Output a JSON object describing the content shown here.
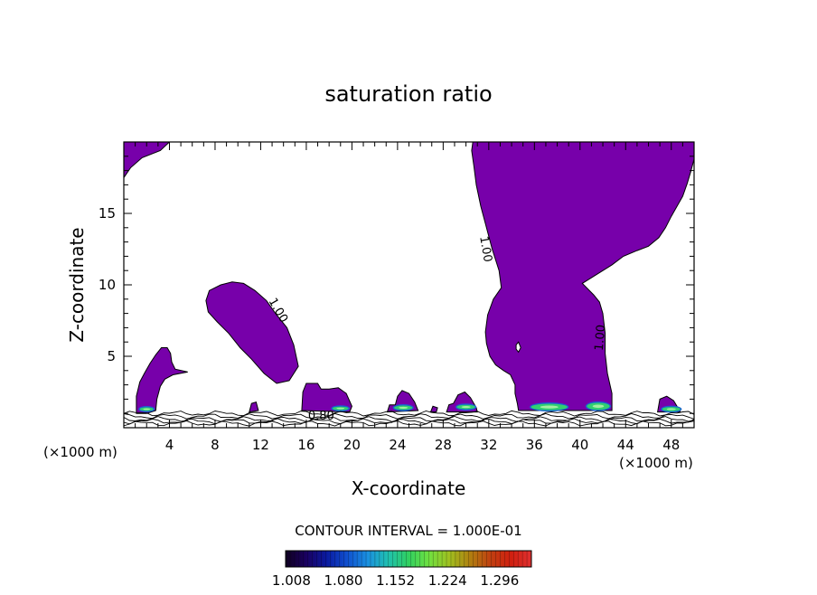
{
  "chart_data": {
    "type": "contour",
    "title": "saturation ratio",
    "xlabel": "X-coordinate",
    "ylabel": "Z-coordinate",
    "x_unit_label": "(×1000 m)",
    "xlim": [
      0,
      50
    ],
    "ylim": [
      0,
      20
    ],
    "x_ticks": [
      4,
      8,
      12,
      16,
      20,
      24,
      28,
      32,
      36,
      40,
      44,
      48
    ],
    "y_ticks": [
      5,
      10,
      15
    ],
    "fill_color": "#7700AA",
    "contour_labels": [
      {
        "text": "1.00",
        "x": 13.5,
        "z": 8.2,
        "angle": 60
      },
      {
        "text": "1.00",
        "x": 31.7,
        "z": 12.5,
        "angle": 80
      },
      {
        "text": "1.00",
        "x": 41.8,
        "z": 6.3,
        "angle": -85
      },
      {
        "text": "0.80",
        "x": 17.3,
        "z": 0.8,
        "angle": 0
      }
    ],
    "regions": [
      {
        "name": "top-left",
        "points": [
          [
            0,
            20
          ],
          [
            4,
            20
          ],
          [
            3.2,
            19.4
          ],
          [
            1.6,
            18.9
          ],
          [
            0.6,
            18.2
          ],
          [
            0,
            17.5
          ]
        ]
      },
      {
        "name": "small-left",
        "points": [
          [
            1.1,
            1.0
          ],
          [
            1.1,
            2.2
          ],
          [
            1.4,
            3.2
          ],
          [
            1.8,
            3.8
          ],
          [
            2.3,
            4.5
          ],
          [
            2.8,
            5.1
          ],
          [
            3.3,
            5.6
          ],
          [
            3.8,
            5.6
          ],
          [
            4.1,
            5.2
          ],
          [
            4.2,
            4.6
          ],
          [
            4.5,
            4.1
          ],
          [
            5.6,
            3.9
          ],
          [
            4.3,
            3.7
          ],
          [
            3.6,
            3.4
          ],
          [
            3.2,
            2.9
          ],
          [
            2.9,
            2.0
          ],
          [
            2.8,
            1.2
          ],
          [
            2.0,
            1.0
          ]
        ]
      },
      {
        "name": "mid-blob",
        "points": [
          [
            8.5,
            10.0
          ],
          [
            9.5,
            10.2
          ],
          [
            10.5,
            10.1
          ],
          [
            11.5,
            9.6
          ],
          [
            12.5,
            8.9
          ],
          [
            13.3,
            8.0
          ],
          [
            14.3,
            7.0
          ],
          [
            14.9,
            5.8
          ],
          [
            15.3,
            4.3
          ],
          [
            14.5,
            3.3
          ],
          [
            13.4,
            3.1
          ],
          [
            12.3,
            3.8
          ],
          [
            11.2,
            4.8
          ],
          [
            10.2,
            5.6
          ],
          [
            9.2,
            6.6
          ],
          [
            8.2,
            7.4
          ],
          [
            7.4,
            8.1
          ],
          [
            7.2,
            8.9
          ],
          [
            7.5,
            9.6
          ]
        ]
      },
      {
        "name": "bump-16",
        "points": [
          [
            15.6,
            1.2
          ],
          [
            15.7,
            2.5
          ],
          [
            16.0,
            3.1
          ],
          [
            17.0,
            3.1
          ],
          [
            17.3,
            2.7
          ],
          [
            18.0,
            2.7
          ],
          [
            18.8,
            2.8
          ],
          [
            19.5,
            2.4
          ],
          [
            20.0,
            1.5
          ],
          [
            19.8,
            1.1
          ]
        ]
      },
      {
        "name": "bump-24",
        "points": [
          [
            23.1,
            1.1
          ],
          [
            23.3,
            1.6
          ],
          [
            23.8,
            1.6
          ],
          [
            24.0,
            2.2
          ],
          [
            24.4,
            2.6
          ],
          [
            25.0,
            2.4
          ],
          [
            25.5,
            1.8
          ],
          [
            25.8,
            1.2
          ]
        ]
      },
      {
        "name": "bump-30",
        "points": [
          [
            28.3,
            1.1
          ],
          [
            28.5,
            1.6
          ],
          [
            28.9,
            1.7
          ],
          [
            29.3,
            2.3
          ],
          [
            29.9,
            2.5
          ],
          [
            30.4,
            2.1
          ],
          [
            30.9,
            1.4
          ],
          [
            31.0,
            1.1
          ]
        ]
      },
      {
        "name": "bump-12",
        "points": [
          [
            11.0,
            1.1
          ],
          [
            11.2,
            1.7
          ],
          [
            11.6,
            1.8
          ],
          [
            11.8,
            1.2
          ]
        ]
      },
      {
        "name": "bump-27",
        "points": [
          [
            26.9,
            1.1
          ],
          [
            27.1,
            1.5
          ],
          [
            27.5,
            1.4
          ],
          [
            27.4,
            1.1
          ]
        ]
      },
      {
        "name": "bump-48",
        "points": [
          [
            46.8,
            1.1
          ],
          [
            47.0,
            2.0
          ],
          [
            47.6,
            2.2
          ],
          [
            48.2,
            1.9
          ],
          [
            48.8,
            1.1
          ]
        ]
      },
      {
        "name": "tall-cloud",
        "points": [
          [
            30.6,
            20
          ],
          [
            30.5,
            19.4
          ],
          [
            30.7,
            18.3
          ],
          [
            30.9,
            17.0
          ],
          [
            31.3,
            15.5
          ],
          [
            31.8,
            14.0
          ],
          [
            32.3,
            12.5
          ],
          [
            32.9,
            11.0
          ],
          [
            33.1,
            9.8
          ],
          [
            32.4,
            9.0
          ],
          [
            31.9,
            7.9
          ],
          [
            31.7,
            6.7
          ],
          [
            31.8,
            5.9
          ],
          [
            32.1,
            5.0
          ],
          [
            32.6,
            4.4
          ],
          [
            33.3,
            4.0
          ],
          [
            33.9,
            3.7
          ],
          [
            34.3,
            3.0
          ],
          [
            34.3,
            2.4
          ],
          [
            34.5,
            1.7
          ],
          [
            34.6,
            1.2
          ],
          [
            42.8,
            1.2
          ],
          [
            42.8,
            2.4
          ],
          [
            42.4,
            3.8
          ],
          [
            42.2,
            5.2
          ],
          [
            42.2,
            6.6
          ],
          [
            42.0,
            8.0
          ],
          [
            41.7,
            8.8
          ],
          [
            41.2,
            9.3
          ],
          [
            40.2,
            10.1
          ],
          [
            40.8,
            10.4
          ],
          [
            41.8,
            10.9
          ],
          [
            42.8,
            11.4
          ],
          [
            43.8,
            12.0
          ],
          [
            45.0,
            12.4
          ],
          [
            46.0,
            12.7
          ],
          [
            46.9,
            13.3
          ],
          [
            47.5,
            14.0
          ],
          [
            48.0,
            14.8
          ],
          [
            48.5,
            15.5
          ],
          [
            49.0,
            16.2
          ],
          [
            49.4,
            17.1
          ],
          [
            49.7,
            17.9
          ],
          [
            50,
            18.8
          ],
          [
            50,
            20
          ]
        ]
      }
    ],
    "holes": [
      {
        "points": [
          [
            34.4,
            5.8
          ],
          [
            34.6,
            6.0
          ],
          [
            34.8,
            5.6
          ],
          [
            34.6,
            5.3
          ],
          [
            34.4,
            5.5
          ]
        ]
      }
    ],
    "hotspots": [
      {
        "x": 37.3,
        "z": 1.45,
        "w": 3.2,
        "h": 0.45
      },
      {
        "x": 41.6,
        "z": 1.5,
        "w": 2.0,
        "h": 0.5
      },
      {
        "x": 30.0,
        "z": 1.45,
        "w": 1.6,
        "h": 0.3
      },
      {
        "x": 24.5,
        "z": 1.4,
        "w": 1.6,
        "h": 0.3
      },
      {
        "x": 19.0,
        "z": 1.35,
        "w": 1.4,
        "h": 0.25
      },
      {
        "x": 48.0,
        "z": 1.3,
        "w": 1.6,
        "h": 0.3
      },
      {
        "x": 2.0,
        "z": 1.3,
        "w": 1.2,
        "h": 0.25
      }
    ],
    "contour_interval_label": "CONTOUR INTERVAL = 1.000E-01",
    "colorbar": {
      "min": 1.0,
      "max": 1.34,
      "tick_labels": [
        "1.008",
        "1.080",
        "1.152",
        "1.224",
        "1.296"
      ],
      "colors": [
        "#100020",
        "#1a0060",
        "#0a1aa0",
        "#1050d0",
        "#1a90e0",
        "#20c0b0",
        "#30d060",
        "#70e040",
        "#a0c020",
        "#b08010",
        "#c04010",
        "#d02010",
        "#e03030"
      ]
    }
  }
}
